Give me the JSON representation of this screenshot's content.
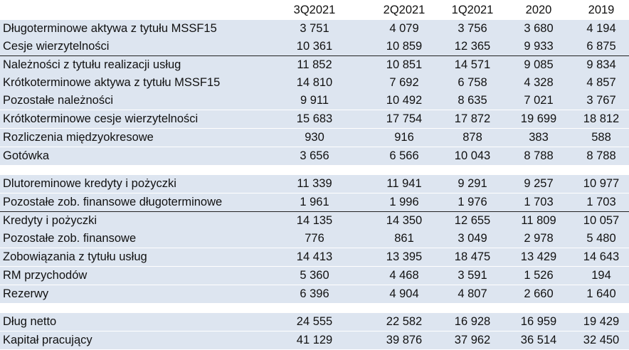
{
  "headers": [
    "3Q2021",
    "2Q2021",
    "1Q2021",
    "2020",
    "2019"
  ],
  "rows": [
    {
      "label": "Długoterminowe aktywa z tytułu MSSF15",
      "values": [
        "3 751",
        "4 079",
        "3 756",
        "3 680",
        "4 194"
      ]
    },
    {
      "label": "Cesje wierzytelności",
      "values": [
        "10 361",
        "10 859",
        "12 365",
        "9 933",
        "6 875"
      ]
    },
    {
      "label": "Należności z tytułu realizacji usług",
      "values": [
        "11 852",
        "10 851",
        "14 571",
        "9 085",
        "9 834"
      ]
    },
    {
      "label": "Krótkoterminowe aktywa z tytułu MSSF15",
      "values": [
        "14 810",
        "7 692",
        "6 758",
        "4 328",
        "4 857"
      ]
    },
    {
      "label": "Pozostałe należności",
      "values": [
        "9 911",
        "10 492",
        "8 635",
        "7 021",
        "3 767"
      ]
    },
    {
      "label": "Krótkoterminowe cesje wierzytelności",
      "values": [
        "15 683",
        "17 754",
        "17 872",
        "19 699",
        "18 812"
      ]
    },
    {
      "label": "Rozliczenia międzyokresowe",
      "values": [
        "930",
        "916",
        "878",
        "383",
        "588"
      ]
    },
    {
      "label": "Gotówka",
      "values": [
        "3 656",
        "6 566",
        "10 043",
        "8 788",
        "8 788"
      ]
    },
    {
      "label": "Dlutoreminowe kredyty i pożyczki",
      "values": [
        "11 339",
        "11 941",
        "9 291",
        "9 257",
        "10 977"
      ]
    },
    {
      "label": "Pozostałe zob. finansowe długoterminowe",
      "values": [
        "1 961",
        "1 996",
        "1 976",
        "1 703",
        "1 703"
      ]
    },
    {
      "label": "Kredyty i pożyczki",
      "values": [
        "14 135",
        "14 350",
        "12 655",
        "11 809",
        "10 057"
      ]
    },
    {
      "label": "Pozostałe zob. finansowe",
      "values": [
        "776",
        "861",
        "3 049",
        "2 978",
        "5 480"
      ]
    },
    {
      "label": "Zobowiązania z tytułu usług",
      "values": [
        "14 413",
        "13 395",
        "18 475",
        "13 429",
        "14 643"
      ]
    },
    {
      "label": "RM przychodów",
      "values": [
        "5 360",
        "4 468",
        "3 591",
        "1 526",
        "194"
      ]
    },
    {
      "label": "Rezerwy",
      "values": [
        "6 396",
        "4 904",
        "4 807",
        "2 660",
        "1 640"
      ]
    },
    {
      "label": "Dług netto",
      "values": [
        "24 555",
        "22 582",
        "16 928",
        "16 959",
        "19 429"
      ]
    },
    {
      "label": "Kapitał pracujący",
      "values": [
        "41 129",
        "39 876",
        "37 962",
        "36 514",
        "32 450"
      ]
    }
  ]
}
